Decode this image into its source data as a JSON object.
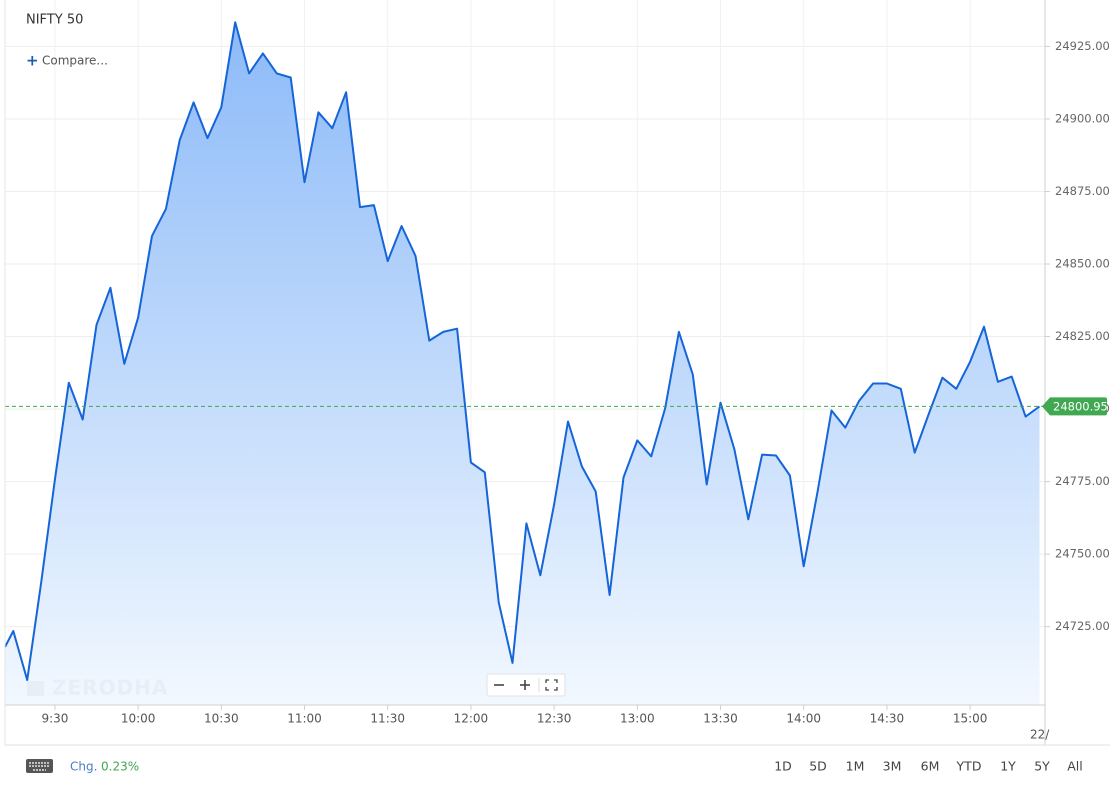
{
  "chart_data": {
    "type": "area",
    "title": "NIFTY 50",
    "compare": "Compare...",
    "watermark": "ZERODHA",
    "color": "#1565d8",
    "fill_top": "#8cbaf8",
    "fill_bottom": "#f2f8ff",
    "last_price": 24800.95,
    "last_price_color": "#3fa850",
    "date_label": "22/",
    "x": [
      552,
      555,
      560,
      565,
      570,
      575,
      580,
      585,
      590,
      595,
      600,
      605,
      610,
      615,
      620,
      625,
      630,
      635,
      640,
      645,
      650,
      655,
      660,
      665,
      670,
      675,
      680,
      685,
      690,
      695,
      700,
      705,
      710,
      715,
      720,
      725,
      730,
      735,
      740,
      745,
      750,
      755,
      760,
      765,
      770,
      775,
      780,
      785,
      790,
      795,
      800,
      805,
      810,
      815,
      820,
      825,
      830,
      835,
      840,
      845,
      850,
      855,
      860,
      865,
      870,
      875,
      880,
      885,
      890,
      895,
      900,
      905,
      910,
      915,
      920,
      925
    ],
    "values": [
      24718.0,
      24723.5,
      24706.6,
      24740.0,
      24775.7,
      24809.1,
      24796.4,
      24829.0,
      24841.8,
      24815.6,
      24831.5,
      24859.7,
      24869.0,
      24892.7,
      24905.7,
      24893.4,
      24904.0,
      24933.3,
      24915.7,
      24922.6,
      24915.7,
      24914.3,
      24878.2,
      24902.3,
      24896.8,
      24909.2,
      24869.6,
      24870.3,
      24851.0,
      24863.1,
      24852.8,
      24823.6,
      24826.6,
      24827.7,
      24781.6,
      24778.2,
      24733.4,
      24712.5,
      24760.6,
      24742.7,
      24767.1,
      24795.7,
      24780.2,
      24771.6,
      24735.9,
      24776.4,
      24789.2,
      24783.7,
      24800.2,
      24826.6,
      24811.9,
      24774.0,
      24802.2,
      24786.1,
      24762.0,
      24784.3,
      24784.0,
      24777.1,
      24745.8,
      24771.6,
      24799.5,
      24793.6,
      24802.9,
      24808.8,
      24808.8,
      24807.0,
      24785.0,
      24798.1,
      24810.8,
      24807.0,
      24816.3,
      24828.4,
      24809.4,
      24811.2,
      24797.4,
      24800.9
    ],
    "xlim": [
      552,
      927
    ],
    "xticks": [
      {
        "value": 570,
        "label": "9:30"
      },
      {
        "value": 600,
        "label": "10:00"
      },
      {
        "value": 630,
        "label": "10:30"
      },
      {
        "value": 660,
        "label": "11:00"
      },
      {
        "value": 690,
        "label": "11:30"
      },
      {
        "value": 720,
        "label": "12:00"
      },
      {
        "value": 750,
        "label": "12:30"
      },
      {
        "value": 780,
        "label": "13:00"
      },
      {
        "value": 810,
        "label": "13:30"
      },
      {
        "value": 840,
        "label": "14:00"
      },
      {
        "value": 870,
        "label": "14:30"
      },
      {
        "value": 900,
        "label": "15:00"
      }
    ],
    "ylim": [
      24698,
      24941
    ],
    "yticks": [
      {
        "value": 24725,
        "label": "24725.00"
      },
      {
        "value": 24750,
        "label": "24750.00"
      },
      {
        "value": 24775,
        "label": "24775.00"
      },
      {
        "value": 24800,
        "label": "24800.00"
      },
      {
        "value": 24825,
        "label": "24825.00"
      },
      {
        "value": 24850,
        "label": "24850.00"
      },
      {
        "value": 24875,
        "label": "24875.00"
      },
      {
        "value": 24900,
        "label": "24900.00"
      },
      {
        "value": 24925,
        "label": "24925.00"
      }
    ],
    "grid": true
  },
  "footer": {
    "chg_label": "Chg.",
    "chg_value": "0.23%",
    "ranges": [
      "1D",
      "5D",
      "1M",
      "3M",
      "6M",
      "YTD",
      "1Y",
      "5Y",
      "All"
    ]
  }
}
